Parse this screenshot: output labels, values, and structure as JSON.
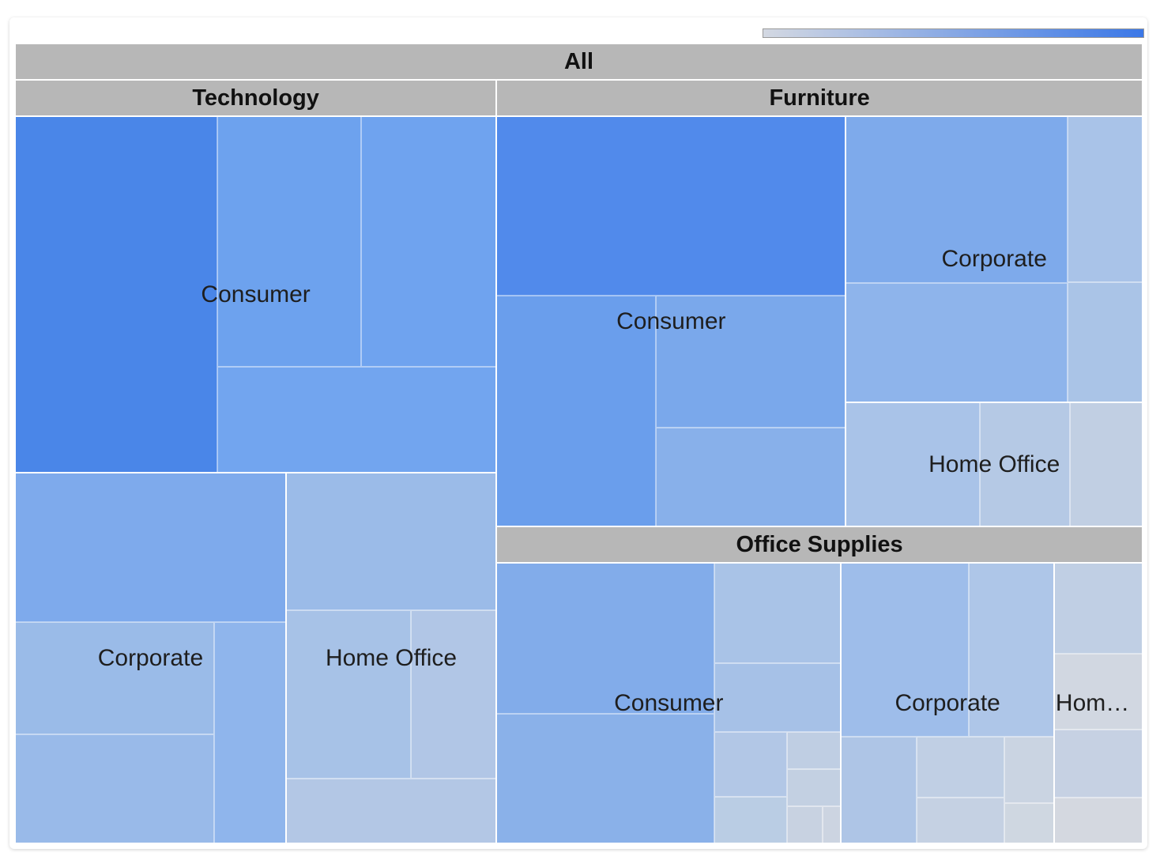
{
  "legend": {
    "low_color": "#d3d8e2",
    "high_color": "#3b78e7"
  },
  "chart_data": {
    "type": "treemap",
    "root": "All",
    "categories": [
      {
        "name": "Technology",
        "segments": [
          {
            "name": "Consumer",
            "label": "Consumer",
            "leaves": [
              {
                "value": 1.0,
                "color": "#4a86e8"
              },
              {
                "value": 0.5,
                "color": "#6da2ee"
              },
              {
                "value": 0.47,
                "color": "#6fa3ef"
              },
              {
                "value": 0.41,
                "color": "#72a5ef"
              }
            ]
          },
          {
            "name": "Corporate",
            "label": "Corporate",
            "leaves": [
              {
                "value": 0.56,
                "color": "#7eaaec"
              },
              {
                "value": 0.22,
                "color": "#8fb5ec"
              },
              {
                "value": 0.3,
                "color": "#99bae9"
              },
              {
                "value": 0.31,
                "color": "#9abbe8"
              }
            ]
          },
          {
            "name": "Home Office",
            "label": "Home Office",
            "leaves": [
              {
                "value": 0.4,
                "color": "#9bbbe8"
              },
              {
                "value": 0.29,
                "color": "#a7c2e7"
              },
              {
                "value": 0.2,
                "color": "#b1c6e6"
              },
              {
                "value": 0.19,
                "color": "#b3c7e5"
              }
            ]
          }
        ]
      },
      {
        "name": "Furniture",
        "segments": [
          {
            "name": "Consumer",
            "label": "Consumer",
            "leaves": [
              {
                "value": 0.9,
                "color": "#518aeb"
              },
              {
                "value": 0.53,
                "color": "#6a9eec"
              },
              {
                "value": 0.36,
                "color": "#7aa8eb"
              },
              {
                "value": 0.27,
                "color": "#88b0ea"
              }
            ]
          },
          {
            "name": "Corporate",
            "label": "Corporate",
            "leaves": [
              {
                "value": 0.53,
                "color": "#7eaaeb"
              },
              {
                "value": 0.38,
                "color": "#8eb4eb"
              },
              {
                "value": 0.18,
                "color": "#a9c3e8"
              },
              {
                "value": 0.13,
                "color": "#aac4e7"
              }
            ]
          },
          {
            "name": "Home Office",
            "label": "Home Office",
            "leaves": [
              {
                "value": 0.24,
                "color": "#a9c3e8"
              },
              {
                "value": 0.16,
                "color": "#b5c9e5"
              },
              {
                "value": 0.13,
                "color": "#c1cfe3"
              }
            ]
          }
        ]
      },
      {
        "name": "Office Supplies",
        "segments": [
          {
            "name": "Consumer",
            "label": "Consumer",
            "leaves": [
              {
                "value": 0.49,
                "color": "#82acea"
              },
              {
                "value": 0.42,
                "color": "#8ab1e9"
              },
              {
                "value": 0.13,
                "color": "#a6c1e7"
              },
              {
                "value": 0.19,
                "color": "#a9c3e7"
              },
              {
                "value": 0.07,
                "color": "#b2c7e6"
              },
              {
                "value": 0.05,
                "color": "#bacde4"
              },
              {
                "value": 0.03,
                "color": "#bfcee3"
              },
              {
                "value": 0.03,
                "color": "#c3d0e2"
              },
              {
                "value": 0.02,
                "color": "#c8d2e1"
              },
              {
                "value": 0.01,
                "color": "#ccd4e1"
              }
            ]
          },
          {
            "name": "Corporate",
            "label": "Corporate",
            "leaves": [
              {
                "value": 0.33,
                "color": "#9ebdea"
              },
              {
                "value": 0.22,
                "color": "#aec6e8"
              },
              {
                "value": 0.12,
                "color": "#aec5e6"
              },
              {
                "value": 0.08,
                "color": "#c0cfe4"
              },
              {
                "value": 0.06,
                "color": "#c5d1e3"
              },
              {
                "value": 0.05,
                "color": "#cad4e2"
              },
              {
                "value": 0.03,
                "color": "#cfd7e1"
              }
            ]
          },
          {
            "name": "Home Office",
            "label": "Home Off...",
            "leaves": [
              {
                "value": 0.12,
                "color": "#c0cfe4"
              },
              {
                "value": 0.09,
                "color": "#c6d1e3"
              },
              {
                "value": 0.1,
                "color": "#d1d7e1"
              },
              {
                "value": 0.06,
                "color": "#d4d8e0"
              }
            ]
          }
        ]
      }
    ]
  }
}
